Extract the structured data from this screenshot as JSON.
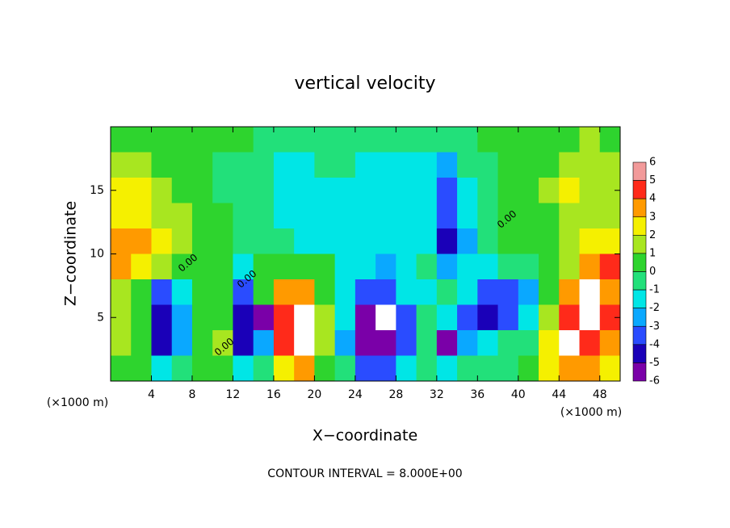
{
  "chart_data": {
    "type": "heatmap",
    "title": "vertical velocity",
    "x_label": "X−coordinate",
    "y_label": "Z−coordinate",
    "x_unit_label": "(×1000 m)",
    "x_unit_label_right": "(×1000 m)",
    "footnote": "CONTOUR INTERVAL = 8.000E+00",
    "contour_labels": [
      "0.00",
      "0.00",
      "0.00",
      "0.00"
    ],
    "xlim": [
      0,
      50
    ],
    "ylim": [
      0,
      20
    ],
    "xticks": [
      4,
      8,
      12,
      16,
      20,
      24,
      28,
      32,
      36,
      40,
      44,
      48
    ],
    "yticks": [
      5,
      10,
      15
    ],
    "x": [
      1,
      3,
      5,
      7,
      9,
      11,
      13,
      15,
      17,
      19,
      21,
      23,
      25,
      27,
      29,
      31,
      33,
      35,
      37,
      39,
      41,
      43,
      45,
      47,
      49
    ],
    "y": [
      19,
      17,
      15,
      13,
      11,
      9,
      7,
      5,
      3,
      1
    ],
    "values": [
      [
        0.5,
        0.5,
        0.3,
        0.3,
        0.5,
        0.3,
        0.2,
        0,
        -0.3,
        -0.5,
        -0.5,
        -0.5,
        -0.5,
        -0.5,
        -0.5,
        -0.5,
        -0.8,
        -0.5,
        0.2,
        0.3,
        0.3,
        0.5,
        1,
        1.5,
        1
      ],
      [
        1.5,
        1.5,
        1,
        0.5,
        0.3,
        0,
        -0.3,
        -0.5,
        -1,
        -1,
        -0.8,
        -0.8,
        -1,
        -1,
        -1,
        -1.5,
        -2,
        -0.5,
        0,
        0.3,
        0.5,
        0.8,
        1.5,
        1.5,
        1.5
      ],
      [
        2.5,
        2.5,
        2,
        1,
        0.5,
        0,
        -0.5,
        -0.5,
        -1,
        -1.5,
        -1,
        -1,
        -1,
        -1,
        -1,
        -1.5,
        -3,
        -1,
        0,
        0.5,
        0.5,
        1.5,
        2.5,
        1.5,
        1.5
      ],
      [
        3,
        3,
        2,
        1.5,
        0.5,
        0.2,
        -0.3,
        -0.5,
        -1,
        -1.5,
        -1,
        -1,
        -1,
        -1,
        -1,
        -1.5,
        -3.5,
        -1.5,
        -0.5,
        0.5,
        0.5,
        1,
        2,
        2,
        2
      ],
      [
        4,
        3.5,
        2.5,
        1.5,
        0.5,
        0.3,
        0,
        -0.3,
        -0.8,
        -1.2,
        -1,
        -1,
        -1,
        -1,
        -1,
        -1.5,
        -4,
        -2,
        -0.5,
        0.3,
        0.3,
        0.8,
        1.5,
        2.5,
        3
      ],
      [
        4,
        3,
        1.5,
        0.5,
        0.5,
        0.5,
        -1,
        0.5,
        1,
        1,
        0.5,
        -1,
        -1.5,
        -2,
        -1,
        -0.5,
        -2,
        -1,
        -1,
        -0.8,
        -0.5,
        0.5,
        2,
        4,
        4.5
      ],
      [
        1.5,
        0.8,
        -3,
        -1.5,
        0.5,
        0.3,
        -3,
        0.5,
        4,
        4,
        0.5,
        -1,
        -3,
        -3.5,
        -1,
        -1,
        -0.5,
        -1.5,
        -3,
        -3.5,
        -2,
        1,
        4,
        6.5,
        4
      ],
      [
        1.5,
        0.5,
        -4,
        -2,
        0.5,
        0.3,
        -4,
        -5,
        5,
        7,
        2,
        -1.5,
        -5,
        -7,
        -3,
        0,
        -1,
        -3,
        -4,
        -3,
        -1,
        2,
        5,
        7,
        5
      ],
      [
        1.5,
        0.5,
        -4,
        -2,
        0.3,
        2,
        -4,
        -2,
        5,
        7,
        2,
        -2,
        -5,
        -6,
        -3,
        -0.5,
        -5,
        -2,
        -1,
        -0.5,
        0,
        3,
        6.5,
        5,
        4
      ],
      [
        1,
        0.5,
        -1.5,
        -0.5,
        0.3,
        1,
        -1,
        -0.5,
        3,
        4,
        1,
        -0.5,
        -3,
        -3,
        -1,
        0,
        -1,
        -0.5,
        0,
        0,
        0.3,
        3,
        4,
        4,
        3
      ]
    ],
    "colorbar_ticks": [
      6,
      5,
      4,
      3,
      2,
      1,
      0,
      -1,
      -2,
      -3,
      -4,
      -5,
      -6
    ],
    "colors": [
      "#f29a9a",
      "#ff2a1a",
      "#ff9a00",
      "#f5f000",
      "#a8e620",
      "#2ed42e",
      "#22e07a",
      "#00e6e6",
      "#0aa8ff",
      "#2a4cff",
      "#1a00b8",
      "#7a00a8"
    ],
    "out_of_range_color": "#ffffff"
  }
}
